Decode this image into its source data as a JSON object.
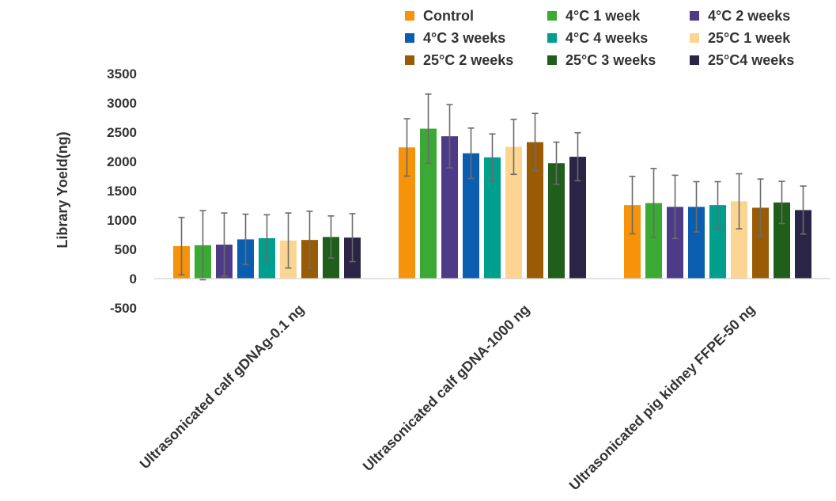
{
  "chart_data": {
    "type": "bar",
    "title": "",
    "xlabel": "",
    "ylabel": "Library Yoeld(ng)",
    "ylim": [
      -500,
      3500
    ],
    "yticks": [
      -500,
      0,
      500,
      1000,
      1500,
      2000,
      2500,
      3000,
      3500
    ],
    "grid": false,
    "error_bars": true,
    "legend_position": "top",
    "categories": [
      "Ultrasonicated calf gDNAg-0.1 ng",
      "Ultrasonicated calf gDNA-1000 ng",
      "Ultrasonicated pig kidney FFPE-50 ng"
    ],
    "series": [
      {
        "name": "Control",
        "color": "#F7930A",
        "values": [
          555,
          2240,
          1255
        ],
        "errors": [
          490,
          490,
          490
        ]
      },
      {
        "name": "4°C 1 week",
        "color": "#3AAA35",
        "values": [
          570,
          2560,
          1290
        ],
        "errors": [
          590,
          590,
          590
        ]
      },
      {
        "name": "4°C 2 weeks",
        "color": "#4E3B87",
        "values": [
          580,
          2430,
          1225
        ],
        "errors": [
          540,
          540,
          540
        ]
      },
      {
        "name": "4°C 3 weeks",
        "color": "#0B5EAF",
        "values": [
          670,
          2140,
          1225
        ],
        "errors": [
          430,
          430,
          430
        ]
      },
      {
        "name": "4°C 4 weeks",
        "color": "#009E8C",
        "values": [
          690,
          2070,
          1255
        ],
        "errors": [
          400,
          400,
          400
        ]
      },
      {
        "name": "25°C 1 week",
        "color": "#FCD593",
        "values": [
          650,
          2250,
          1320
        ],
        "errors": [
          470,
          470,
          470
        ]
      },
      {
        "name": "25°C 2 weeks",
        "color": "#9A5B05",
        "values": [
          660,
          2330,
          1210
        ],
        "errors": [
          490,
          490,
          490
        ]
      },
      {
        "name": "25°C 3 weeks",
        "color": "#1F5E1B",
        "values": [
          710,
          1970,
          1300
        ],
        "errors": [
          360,
          360,
          360
        ]
      },
      {
        "name": "25°C4 weeks",
        "color": "#2A2446",
        "values": [
          700,
          2080,
          1170
        ],
        "errors": [
          410,
          410,
          410
        ]
      }
    ]
  }
}
